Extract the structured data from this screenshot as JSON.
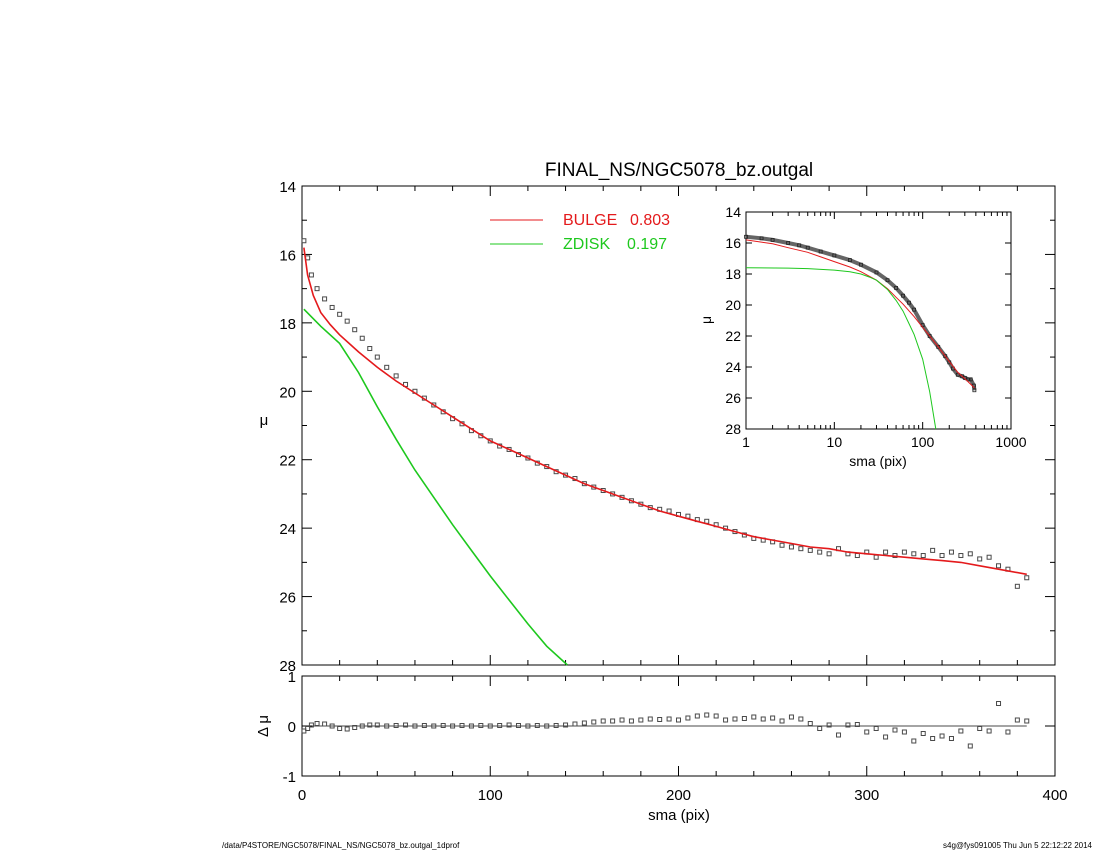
{
  "footer": {
    "left": "/data/P4STORE/NGC5078/FINAL_NS/NGC5078_bz.outgal_1dprof",
    "right": "s4g@fys091005  Thu Jun  5 22:12:22 2014"
  },
  "colors": {
    "bulge": "#e41a1c",
    "zdisk": "#1ec81e",
    "data": "#4a4a4a",
    "axis": "#000000"
  },
  "chart_data": [
    {
      "type": "line",
      "title": "FINAL_NS/NGC5078_bz.outgal",
      "xlabel": "",
      "ylabel": "μ",
      "xlim": [
        0,
        400
      ],
      "ylim": [
        28,
        14
      ],
      "xticks": [
        0,
        100,
        200,
        300,
        400
      ],
      "yticks": [
        14,
        16,
        18,
        20,
        22,
        24,
        26,
        28
      ],
      "legend": {
        "placement": "top-center",
        "entries": [
          {
            "label": "BULGE",
            "value": "0.803",
            "color": "#e41a1c"
          },
          {
            "label": "ZDISK",
            "value": "0.197",
            "color": "#1ec81e"
          }
        ]
      },
      "series": [
        {
          "name": "data",
          "style": "square-markers",
          "x": [
            1,
            3,
            5,
            8,
            12,
            16,
            20,
            24,
            28,
            32,
            36,
            40,
            45,
            50,
            55,
            60,
            65,
            70,
            75,
            80,
            85,
            90,
            95,
            100,
            105,
            110,
            115,
            120,
            125,
            130,
            135,
            140,
            145,
            150,
            155,
            160,
            165,
            170,
            175,
            180,
            185,
            190,
            195,
            200,
            205,
            210,
            215,
            220,
            225,
            230,
            235,
            240,
            245,
            250,
            255,
            260,
            265,
            270,
            275,
            280,
            285,
            290,
            295,
            300,
            305,
            310,
            315,
            320,
            325,
            330,
            335,
            340,
            345,
            350,
            355,
            360,
            365,
            370,
            375,
            380,
            385
          ],
          "y": [
            15.6,
            16.1,
            16.6,
            17.0,
            17.3,
            17.55,
            17.75,
            17.95,
            18.2,
            18.45,
            18.75,
            19.0,
            19.3,
            19.55,
            19.8,
            20.0,
            20.2,
            20.4,
            20.6,
            20.8,
            20.95,
            21.15,
            21.3,
            21.45,
            21.6,
            21.7,
            21.85,
            21.95,
            22.1,
            22.2,
            22.35,
            22.45,
            22.55,
            22.7,
            22.8,
            22.9,
            23.0,
            23.1,
            23.2,
            23.3,
            23.4,
            23.45,
            23.5,
            23.6,
            23.65,
            23.75,
            23.8,
            23.9,
            24.0,
            24.1,
            24.2,
            24.3,
            24.35,
            24.4,
            24.5,
            24.55,
            24.6,
            24.65,
            24.7,
            24.75,
            24.6,
            24.75,
            24.8,
            24.7,
            24.85,
            24.7,
            24.8,
            24.7,
            24.75,
            24.8,
            24.65,
            24.8,
            24.7,
            24.8,
            24.75,
            24.9,
            24.85,
            25.1,
            25.2,
            25.7,
            25.45
          ]
        },
        {
          "name": "BULGE",
          "x": [
            1,
            3,
            6,
            10,
            15,
            20,
            25,
            30,
            40,
            50,
            60,
            70,
            80,
            90,
            100,
            110,
            120,
            130,
            140,
            150,
            160,
            170,
            180,
            190,
            200,
            210,
            220,
            230,
            240,
            250,
            260,
            270,
            280,
            290,
            300,
            310,
            320,
            330,
            340,
            350,
            360,
            370,
            385
          ],
          "y": [
            15.8,
            16.6,
            17.2,
            17.7,
            18.05,
            18.35,
            18.6,
            18.85,
            19.3,
            19.7,
            20.05,
            20.4,
            20.75,
            21.1,
            21.45,
            21.7,
            21.95,
            22.2,
            22.45,
            22.7,
            22.9,
            23.1,
            23.3,
            23.5,
            23.65,
            23.8,
            23.95,
            24.1,
            24.25,
            24.35,
            24.45,
            24.55,
            24.6,
            24.7,
            24.75,
            24.8,
            24.85,
            24.9,
            24.95,
            25.0,
            25.1,
            25.2,
            25.35
          ]
        },
        {
          "name": "ZDISK",
          "x": [
            1,
            10,
            20,
            30,
            40,
            50,
            60,
            70,
            80,
            90,
            100,
            110,
            120,
            130,
            141
          ],
          "y": [
            17.6,
            18.1,
            18.6,
            19.45,
            20.45,
            21.4,
            22.3,
            23.1,
            23.9,
            24.65,
            25.4,
            26.1,
            26.8,
            27.45,
            28.0
          ]
        }
      ]
    },
    {
      "type": "scatter",
      "xlabel": "sma (pix)",
      "ylabel": "Δ μ",
      "xlim": [
        0,
        400
      ],
      "ylim": [
        -1,
        1
      ],
      "xticks": [
        0,
        100,
        200,
        300,
        400
      ],
      "yticks": [
        -1,
        0,
        1
      ],
      "reference_line": 0,
      "series": [
        {
          "name": "residual",
          "style": "square-markers",
          "x": [
            1,
            3,
            5,
            8,
            12,
            16,
            20,
            24,
            28,
            32,
            36,
            40,
            45,
            50,
            55,
            60,
            65,
            70,
            75,
            80,
            85,
            90,
            95,
            100,
            105,
            110,
            115,
            120,
            125,
            130,
            135,
            140,
            145,
            150,
            155,
            160,
            165,
            170,
            175,
            180,
            185,
            190,
            195,
            200,
            205,
            210,
            215,
            220,
            225,
            230,
            235,
            240,
            245,
            250,
            255,
            260,
            265,
            270,
            275,
            280,
            285,
            290,
            295,
            300,
            305,
            310,
            315,
            320,
            325,
            330,
            335,
            340,
            345,
            350,
            355,
            360,
            365,
            370,
            375,
            380,
            385
          ],
          "y": [
            -0.1,
            -0.05,
            0.02,
            0.05,
            0.04,
            0.0,
            -0.05,
            -0.06,
            -0.03,
            0.0,
            0.02,
            0.02,
            0.0,
            0.01,
            0.02,
            0.0,
            0.01,
            0.0,
            0.01,
            0.0,
            0.01,
            0.0,
            0.01,
            0.0,
            0.01,
            0.02,
            0.01,
            0.0,
            0.01,
            0.0,
            0.01,
            0.02,
            0.04,
            0.06,
            0.08,
            0.1,
            0.1,
            0.12,
            0.1,
            0.12,
            0.14,
            0.13,
            0.14,
            0.12,
            0.16,
            0.2,
            0.22,
            0.2,
            0.12,
            0.14,
            0.15,
            0.18,
            0.14,
            0.16,
            0.1,
            0.18,
            0.14,
            0.05,
            -0.05,
            0.02,
            -0.18,
            0.02,
            0.03,
            -0.12,
            -0.05,
            -0.22,
            -0.08,
            -0.12,
            -0.3,
            -0.15,
            -0.25,
            -0.2,
            -0.25,
            -0.1,
            -0.4,
            -0.05,
            -0.1,
            0.45,
            -0.12,
            0.12,
            0.1
          ]
        }
      ]
    },
    {
      "type": "line",
      "title": "",
      "xlabel": "sma (pix)",
      "ylabel": "μ",
      "xscale": "log",
      "xlim": [
        1,
        1000
      ],
      "ylim": [
        28,
        14
      ],
      "xticks": [
        1,
        10,
        100,
        1000
      ],
      "yticks": [
        14,
        16,
        18,
        20,
        22,
        24,
        26,
        28
      ],
      "series": [
        {
          "name": "data",
          "style": "square-markers",
          "x": [
            1,
            1.5,
            2,
            3,
            4,
            5,
            7,
            10,
            15,
            20,
            30,
            40,
            50,
            60,
            70,
            80,
            100,
            120,
            150,
            180,
            200,
            220,
            250,
            280,
            300,
            330,
            350,
            380,
            385
          ],
          "y": [
            15.6,
            15.7,
            15.8,
            16.0,
            16.15,
            16.3,
            16.55,
            16.8,
            17.1,
            17.4,
            17.9,
            18.4,
            18.9,
            19.4,
            19.85,
            20.3,
            21.3,
            22.0,
            22.7,
            23.3,
            23.7,
            24.1,
            24.5,
            24.6,
            24.7,
            24.8,
            24.8,
            25.2,
            25.5
          ]
        },
        {
          "name": "BULGE",
          "x": [
            1,
            2,
            3,
            5,
            7,
            10,
            15,
            20,
            30,
            40,
            50,
            60,
            80,
            100,
            120,
            150,
            200,
            250,
            300,
            385
          ],
          "y": [
            15.8,
            16.05,
            16.3,
            16.6,
            16.9,
            17.2,
            17.55,
            17.85,
            18.4,
            18.95,
            19.5,
            19.95,
            20.75,
            21.45,
            22.0,
            22.7,
            23.65,
            24.35,
            24.75,
            25.35
          ]
        },
        {
          "name": "ZDISK",
          "x": [
            1,
            3,
            5,
            10,
            15,
            20,
            25,
            30,
            40,
            50,
            60,
            70,
            80,
            100,
            120,
            141
          ],
          "y": [
            17.6,
            17.62,
            17.65,
            17.75,
            17.85,
            18.0,
            18.2,
            18.4,
            19.0,
            19.7,
            20.4,
            21.2,
            21.9,
            23.5,
            25.6,
            28.0
          ]
        }
      ]
    }
  ]
}
